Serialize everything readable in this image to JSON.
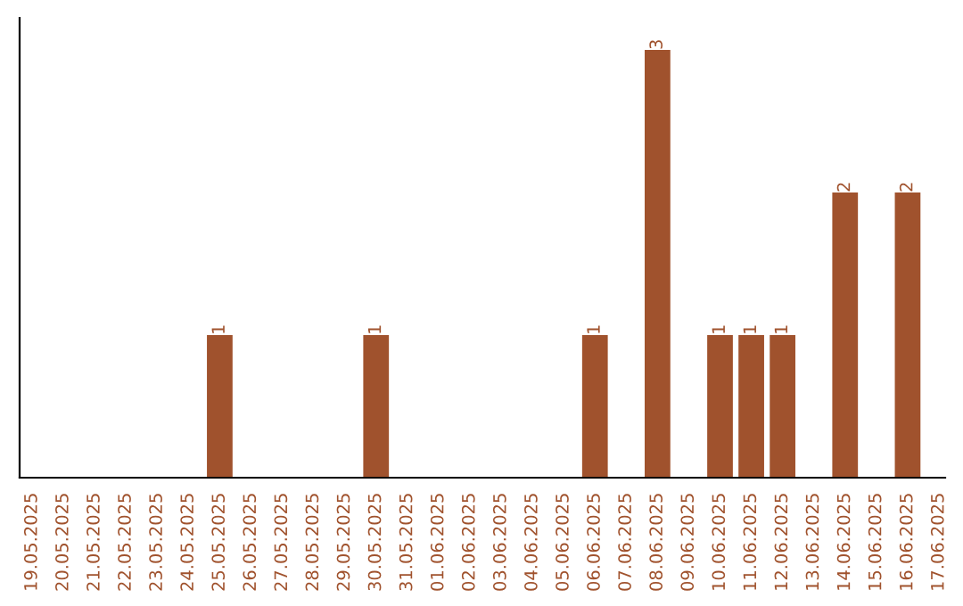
{
  "chart_data": {
    "type": "bar",
    "categories": [
      "19.05.2025",
      "20.05.2025",
      "21.05.2025",
      "22.05.2025",
      "23.05.2025",
      "24.05.2025",
      "25.05.2025",
      "26.05.2025",
      "27.05.2025",
      "28.05.2025",
      "29.05.2025",
      "30.05.2025",
      "31.05.2025",
      "01.06.2025",
      "02.06.2025",
      "03.06.2025",
      "04.06.2025",
      "05.06.2025",
      "06.06.2025",
      "07.06.2025",
      "08.06.2025",
      "09.06.2025",
      "10.06.2025",
      "11.06.2025",
      "12.06.2025",
      "13.06.2025",
      "14.06.2025",
      "15.06.2025",
      "16.06.2025",
      "17.06.2025"
    ],
    "values": [
      0,
      0,
      0,
      0,
      0,
      0,
      1,
      0,
      0,
      0,
      0,
      1,
      0,
      0,
      0,
      0,
      0,
      0,
      1,
      0,
      3,
      0,
      1,
      1,
      1,
      0,
      2,
      0,
      2,
      0
    ],
    "value_labels": [
      null,
      null,
      null,
      null,
      null,
      null,
      "1",
      null,
      null,
      null,
      null,
      "1",
      null,
      null,
      null,
      null,
      null,
      null,
      "1",
      null,
      "3",
      null,
      "1",
      "1",
      "1",
      null,
      "2",
      null,
      "2",
      null
    ],
    "color": "#a0522d",
    "grid": false,
    "legend": false
  }
}
